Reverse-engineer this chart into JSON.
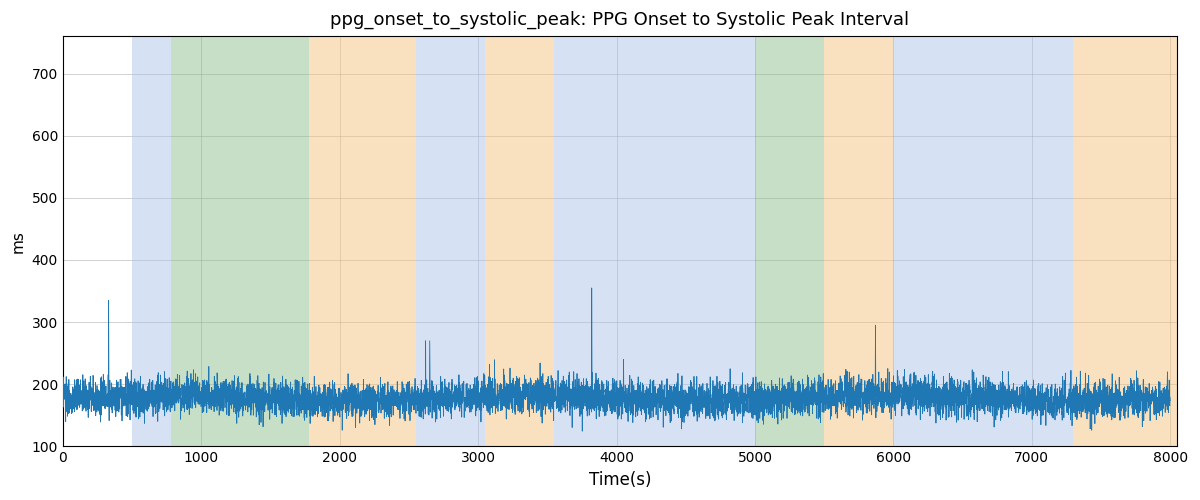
{
  "title": "ppg_onset_to_systolic_peak: PPG Onset to Systolic Peak Interval",
  "xlabel": "Time(s)",
  "ylabel": "ms",
  "xlim": [
    0,
    8050
  ],
  "ylim": [
    100,
    760
  ],
  "yticks": [
    100,
    200,
    300,
    400,
    500,
    600,
    700
  ],
  "xticks": [
    0,
    1000,
    2000,
    3000,
    4000,
    5000,
    6000,
    7000,
    8000
  ],
  "line_color": "#1f77b4",
  "line_width": 0.6,
  "background_color": "#ffffff",
  "bands": [
    {
      "xmin": 500,
      "xmax": 780,
      "color": "#aec6e8",
      "alpha": 0.5
    },
    {
      "xmin": 780,
      "xmax": 1780,
      "color": "#90c090",
      "alpha": 0.5
    },
    {
      "xmin": 1780,
      "xmax": 2550,
      "color": "#f5c580",
      "alpha": 0.5
    },
    {
      "xmin": 2550,
      "xmax": 3050,
      "color": "#aec6e8",
      "alpha": 0.5
    },
    {
      "xmin": 3050,
      "xmax": 3550,
      "color": "#f5c580",
      "alpha": 0.5
    },
    {
      "xmin": 3550,
      "xmax": 4750,
      "color": "#aec6e8",
      "alpha": 0.5
    },
    {
      "xmin": 4750,
      "xmax": 5000,
      "color": "#aec6e8",
      "alpha": 0.5
    },
    {
      "xmin": 5000,
      "xmax": 5500,
      "color": "#90c090",
      "alpha": 0.5
    },
    {
      "xmin": 5500,
      "xmax": 6000,
      "color": "#f5c580",
      "alpha": 0.5
    },
    {
      "xmin": 6000,
      "xmax": 7300,
      "color": "#aec6e8",
      "alpha": 0.5
    },
    {
      "xmin": 7300,
      "xmax": 8050,
      "color": "#f5c580",
      "alpha": 0.5
    }
  ],
  "signal_seed": 0,
  "signal_n_points": 8000,
  "signal_base": 178,
  "signal_noise_std": 15
}
